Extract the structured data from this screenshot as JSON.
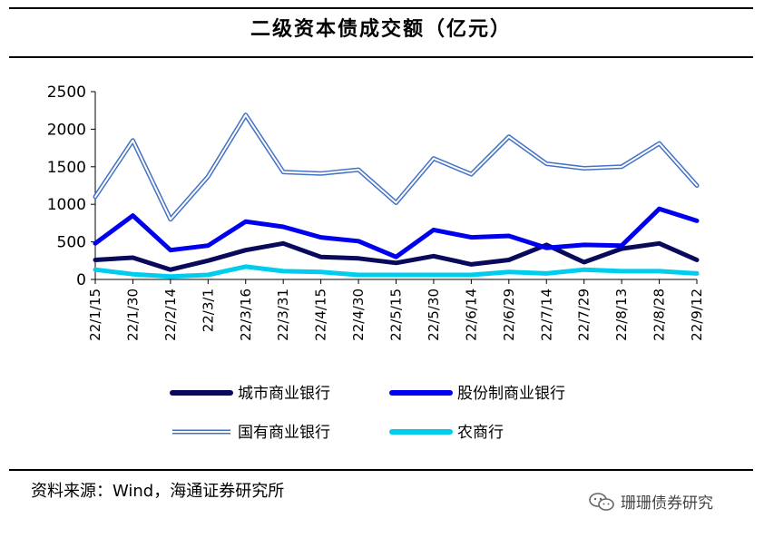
{
  "title": "二级资本债成交额（亿元）",
  "source": "资料来源：Wind，海通证券研究所",
  "watermark": "珊珊债券研究",
  "chart_data": {
    "type": "line",
    "title": "二级资本债成交额（亿元）",
    "ylim": [
      0,
      2500
    ],
    "yticks": [
      0,
      500,
      1000,
      1500,
      2000,
      2500
    ],
    "grid": false,
    "legend_position": "bottom",
    "x": [
      "22/1/15",
      "22/1/30",
      "22/2/14",
      "22/3/1",
      "22/3/16",
      "22/3/31",
      "22/4/15",
      "22/4/30",
      "22/5/15",
      "22/5/30",
      "22/6/14",
      "22/6/29",
      "22/7/14",
      "22/7/29",
      "22/8/13",
      "22/8/28",
      "22/9/12"
    ],
    "series": [
      {
        "name": "城市商业银行",
        "color": "#0a0a5c",
        "style": "solid",
        "values": [
          260,
          290,
          130,
          250,
          390,
          480,
          300,
          280,
          220,
          310,
          200,
          260,
          460,
          230,
          410,
          480,
          260
        ]
      },
      {
        "name": "股份制商业银行",
        "color": "#0000ee",
        "style": "solid",
        "values": [
          480,
          850,
          390,
          450,
          770,
          700,
          560,
          510,
          300,
          660,
          560,
          580,
          420,
          460,
          450,
          940,
          780
        ]
      },
      {
        "name": "国有商业银行",
        "color": "#4472c4",
        "style": "double",
        "values": [
          1100,
          1850,
          800,
          1370,
          2190,
          1430,
          1410,
          1460,
          1020,
          1610,
          1400,
          1900,
          1540,
          1480,
          1500,
          1810,
          1250
        ]
      },
      {
        "name": "农商行",
        "color": "#00ccee",
        "style": "solid",
        "values": [
          130,
          70,
          40,
          60,
          170,
          110,
          100,
          60,
          60,
          60,
          60,
          100,
          80,
          130,
          110,
          110,
          80
        ]
      }
    ]
  }
}
